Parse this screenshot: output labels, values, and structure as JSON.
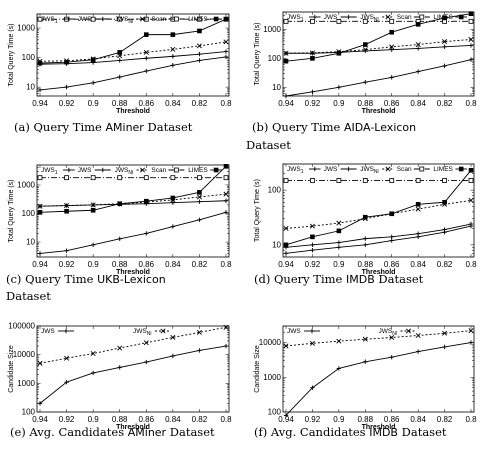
{
  "chart_data": [
    {
      "type": "line",
      "ylog": true,
      "ylabel": "Total Query Time (s)",
      "xlabel": "Threshold",
      "categories": [
        "0.94",
        "0.92",
        "0.9",
        "0.88",
        "0.86",
        "0.84",
        "0.82",
        "0.8"
      ],
      "ylim": [
        5,
        3000
      ],
      "yticks": [
        {
          "v": 10,
          "t": "10"
        },
        {
          "v": 100,
          "t": "100"
        },
        {
          "v": 1000,
          "t": "1000"
        }
      ],
      "legend": [
        "JWS_1",
        "JWS",
        "JWS_Nl",
        "Scan",
        "LIMES"
      ],
      "series": [
        {
          "name": "JWS_1",
          "values": [
            60,
            62,
            68,
            80,
            95,
            110,
            130,
            160
          ]
        },
        {
          "name": "JWS",
          "values": [
            8,
            10,
            14,
            22,
            35,
            55,
            80,
            105
          ]
        },
        {
          "name": "JWS_Nl",
          "values": [
            75,
            78,
            90,
            115,
            150,
            190,
            250,
            340
          ]
        },
        {
          "name": "Scan",
          "values": [
            2000,
            2000,
            2000,
            2000,
            2000,
            2000,
            2000,
            2000
          ]
        },
        {
          "name": "LIMES",
          "values": [
            65,
            70,
            85,
            150,
            600,
            600,
            800,
            2000
          ]
        }
      ],
      "caption_parts": [
        "(a) Query Time ",
        "AMiner",
        " Dataset"
      ]
    },
    {
      "type": "line",
      "ylog": true,
      "ylabel": "Total Query Time (s)",
      "xlabel": "Threshold",
      "categories": [
        "0.94",
        "0.92",
        "0.9",
        "0.88",
        "0.86",
        "0.84",
        "0.82",
        "0.8"
      ],
      "ylim": [
        5,
        4000
      ],
      "yticks": [
        {
          "v": 10,
          "t": "10"
        },
        {
          "v": 100,
          "t": "100"
        },
        {
          "v": 1000,
          "t": "1000"
        }
      ],
      "legend": [
        "JWS_1",
        "JWS",
        "JWS_Nl",
        "Scan",
        "LIMES"
      ],
      "series": [
        {
          "name": "JWS_1",
          "values": [
            150,
            150,
            160,
            180,
            200,
            220,
            250,
            280
          ]
        },
        {
          "name": "JWS",
          "values": [
            5,
            7,
            10,
            15,
            22,
            35,
            55,
            90
          ]
        },
        {
          "name": "JWS_Nl",
          "values": [
            150,
            155,
            170,
            200,
            250,
            300,
            380,
            450
          ]
        },
        {
          "name": "Scan",
          "values": [
            1900,
            1900,
            1900,
            1900,
            1900,
            1900,
            1900,
            1900
          ]
        },
        {
          "name": "LIMES",
          "values": [
            80,
            100,
            150,
            300,
            800,
            1500,
            2500,
            3500
          ]
        }
      ],
      "caption_parts": [
        "(b) Query Time ",
        "AIDA-Lexicon",
        " Dataset"
      ]
    },
    {
      "type": "line",
      "ylog": true,
      "ylabel": "Total Query Time (s)",
      "xlabel": "Threshold",
      "categories": [
        "0.94",
        "0.92",
        "0.9",
        "0.88",
        "0.86",
        "0.84",
        "0.82",
        "0.8"
      ],
      "ylim": [
        3,
        5000
      ],
      "yticks": [
        {
          "v": 10,
          "t": "10"
        },
        {
          "v": 100,
          "t": "100"
        },
        {
          "v": 1000,
          "t": "1000"
        }
      ],
      "legend": [
        "JWS_1",
        "JWS",
        "JWS_Nl",
        "Scan",
        "LIMES"
      ],
      "series": [
        {
          "name": "JWS_1",
          "values": [
            180,
            190,
            200,
            210,
            220,
            240,
            260,
            280
          ]
        },
        {
          "name": "JWS",
          "values": [
            4,
            5,
            8,
            13,
            20,
            35,
            60,
            110
          ]
        },
        {
          "name": "JWS_Nl",
          "values": [
            180,
            190,
            200,
            220,
            250,
            300,
            380,
            480
          ]
        },
        {
          "name": "Scan",
          "values": [
            1800,
            1800,
            1800,
            1800,
            1800,
            1800,
            1800,
            1800
          ]
        },
        {
          "name": "LIMES",
          "values": [
            110,
            120,
            130,
            220,
            270,
            350,
            550,
            4500
          ]
        }
      ],
      "caption_parts": [
        "(c) Query Time ",
        "UKB-Lexicon",
        " Dataset"
      ]
    },
    {
      "type": "line",
      "ylog": true,
      "ylabel": "Total Query Time (s)",
      "xlabel": "Threshold",
      "categories": [
        "0.94",
        "0.92",
        "0.9",
        "0.88",
        "0.86",
        "0.84",
        "0.82",
        "0.8"
      ],
      "ylim": [
        6,
        300
      ],
      "yticks": [
        {
          "v": 10,
          "t": "10"
        },
        {
          "v": 100,
          "t": "100"
        }
      ],
      "legend": [
        "JWS_1",
        "JWS",
        "JWS_Nl",
        "Scan",
        "LIMES"
      ],
      "series": [
        {
          "name": "JWS_1",
          "values": [
            9,
            10,
            11,
            13,
            14,
            16,
            19,
            24
          ]
        },
        {
          "name": "JWS",
          "values": [
            7,
            8,
            9,
            10,
            12,
            14,
            17,
            22
          ]
        },
        {
          "name": "JWS_Nl",
          "values": [
            20,
            22,
            25,
            30,
            37,
            45,
            55,
            65
          ]
        },
        {
          "name": "Scan",
          "values": [
            150,
            150,
            150,
            150,
            150,
            150,
            150,
            150
          ]
        },
        {
          "name": "LIMES",
          "values": [
            10,
            14,
            18,
            32,
            37,
            55,
            60,
            230
          ]
        }
      ],
      "caption_parts": [
        "(d) Query Time ",
        "IMDB",
        " Dataset"
      ]
    },
    {
      "type": "line",
      "ylog": true,
      "ylabel": "Candidate Size",
      "xlabel": "Threshold",
      "categories": [
        "0.94",
        "0.92",
        "0.9",
        "0.88",
        "0.86",
        "0.84",
        "0.82",
        "0.8"
      ],
      "ylim": [
        100,
        100000
      ],
      "yticks": [
        {
          "v": 100,
          "t": "100"
        },
        {
          "v": 1000,
          "t": "1000"
        },
        {
          "v": 10000,
          "t": "10000"
        },
        {
          "v": 100000,
          "t": "100000"
        }
      ],
      "legend": [
        "JWS",
        "JWS_Nl"
      ],
      "series": [
        {
          "name": "JWS",
          "values": [
            200,
            1100,
            2300,
            3600,
            5500,
            9000,
            14000,
            20000
          ]
        },
        {
          "name": "JWS_Nl",
          "values": [
            5000,
            7500,
            11000,
            17000,
            26000,
            40000,
            60000,
            90000
          ]
        }
      ],
      "caption_parts": [
        "(e) Avg. Candidates ",
        "AMiner",
        " Dataset"
      ]
    },
    {
      "type": "line",
      "ylog": true,
      "ylabel": "Candidate Size",
      "xlabel": "Threshold",
      "categories": [
        "0.94",
        "0.92",
        "0.9",
        "0.88",
        "0.86",
        "0.84",
        "0.82",
        "0.8"
      ],
      "ylim": [
        100,
        30000
      ],
      "yticks": [
        {
          "v": 100,
          "t": "100"
        },
        {
          "v": 1000,
          "t": "1000"
        },
        {
          "v": 10000,
          "t": "10000"
        }
      ],
      "legend": [
        "JWS",
        "JWS_Nl"
      ],
      "series": [
        {
          "name": "JWS",
          "values": [
            80,
            500,
            1800,
            2800,
            3800,
            5500,
            7500,
            10000
          ]
        },
        {
          "name": "JWS_Nl",
          "values": [
            8000,
            9500,
            11000,
            12500,
            14000,
            16000,
            18500,
            22000
          ]
        }
      ],
      "caption_parts": [
        "(f) Avg. Candidates ",
        "IMDB",
        " Dataset"
      ]
    }
  ]
}
